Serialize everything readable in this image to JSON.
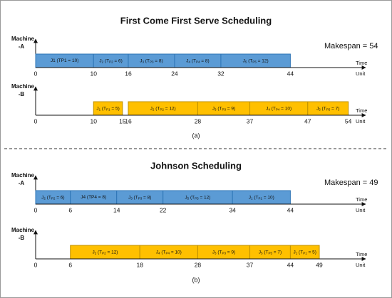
{
  "chart_data": [
    {
      "type": "gantt",
      "title": "First Come First Serve Scheduling",
      "caption": "(a)",
      "makespan": "Makespan = 54",
      "xlim": [
        0,
        57
      ],
      "axis_label": [
        "Time",
        "Unit"
      ],
      "machines": [
        {
          "name": [
            "Machine",
            "-A"
          ],
          "color": "#5b9bd5",
          "edge": "#2e75b6",
          "xticks": [
            0,
            10,
            16,
            24,
            32,
            44
          ],
          "tasks": [
            {
              "label": "J1 (TP1 = 10)",
              "sub": false,
              "start": 0,
              "end": 10
            },
            {
              "label": "J2 (TP2 = 6)",
              "sub": true,
              "start": 10,
              "end": 16
            },
            {
              "label": "J3 (TP3 = 8)",
              "sub": true,
              "start": 16,
              "end": 24
            },
            {
              "label": "J4 (TP4 = 8)",
              "sub": true,
              "start": 24,
              "end": 32
            },
            {
              "label": "J5 (TP5 = 12)",
              "sub": true,
              "start": 32,
              "end": 44
            }
          ]
        },
        {
          "name": [
            "Machine",
            "-B"
          ],
          "color": "#ffc000",
          "edge": "#bf9000",
          "xticks": [
            0,
            10,
            15,
            16,
            28,
            37,
            47,
            54
          ],
          "tasks": [
            {
              "label": "J1 (TP1 = 5)",
              "sub": true,
              "start": 10,
              "end": 15
            },
            {
              "label": "J2 (TP2 = 12)",
              "sub": true,
              "start": 16,
              "end": 28
            },
            {
              "label": "J3 (TP3 = 9)",
              "sub": true,
              "start": 28,
              "end": 37
            },
            {
              "label": "J4 (TP4 = 10)",
              "sub": true,
              "start": 37,
              "end": 47
            },
            {
              "label": "J5 (TP5 = 7)",
              "sub": true,
              "start": 47,
              "end": 54
            }
          ]
        }
      ]
    },
    {
      "type": "gantt",
      "title": "Johnson Scheduling",
      "caption": "(b)",
      "makespan": "Makespan = 49",
      "xlim": [
        0,
        57
      ],
      "axis_label": [
        "Time",
        "Unit"
      ],
      "machines": [
        {
          "name": [
            "Machine",
            "-A"
          ],
          "color": "#5b9bd5",
          "edge": "#2e75b6",
          "xticks": [
            0,
            6,
            14,
            22,
            34,
            44
          ],
          "tasks": [
            {
              "label": "J2 (TP2 = 6)",
              "sub": true,
              "start": 0,
              "end": 6
            },
            {
              "label": "J4 (TP4 = 8)",
              "sub": false,
              "start": 6,
              "end": 14
            },
            {
              "label": "J3 (TP3 = 8)",
              "sub": true,
              "start": 14,
              "end": 22
            },
            {
              "label": "J5 (TP5 = 12)",
              "sub": true,
              "start": 22,
              "end": 34
            },
            {
              "label": "J1 (TP1 = 10)",
              "sub": true,
              "start": 34,
              "end": 44
            }
          ]
        },
        {
          "name": [
            "Machine",
            "-B"
          ],
          "color": "#ffc000",
          "edge": "#bf9000",
          "xticks": [
            0,
            6,
            18,
            28,
            37,
            44,
            49
          ],
          "tasks": [
            {
              "label": "J2 (TP2 = 12)",
              "sub": true,
              "start": 6,
              "end": 18
            },
            {
              "label": "J4 (TP4 = 10)",
              "sub": true,
              "start": 18,
              "end": 28
            },
            {
              "label": "J3 (TP3 = 9)",
              "sub": true,
              "start": 28,
              "end": 37
            },
            {
              "label": "J5 (TP5 = 7)",
              "sub": true,
              "start": 37,
              "end": 44
            },
            {
              "label": "J1 (TP1 = 5)",
              "sub": true,
              "start": 44,
              "end": 49
            }
          ]
        }
      ]
    }
  ]
}
